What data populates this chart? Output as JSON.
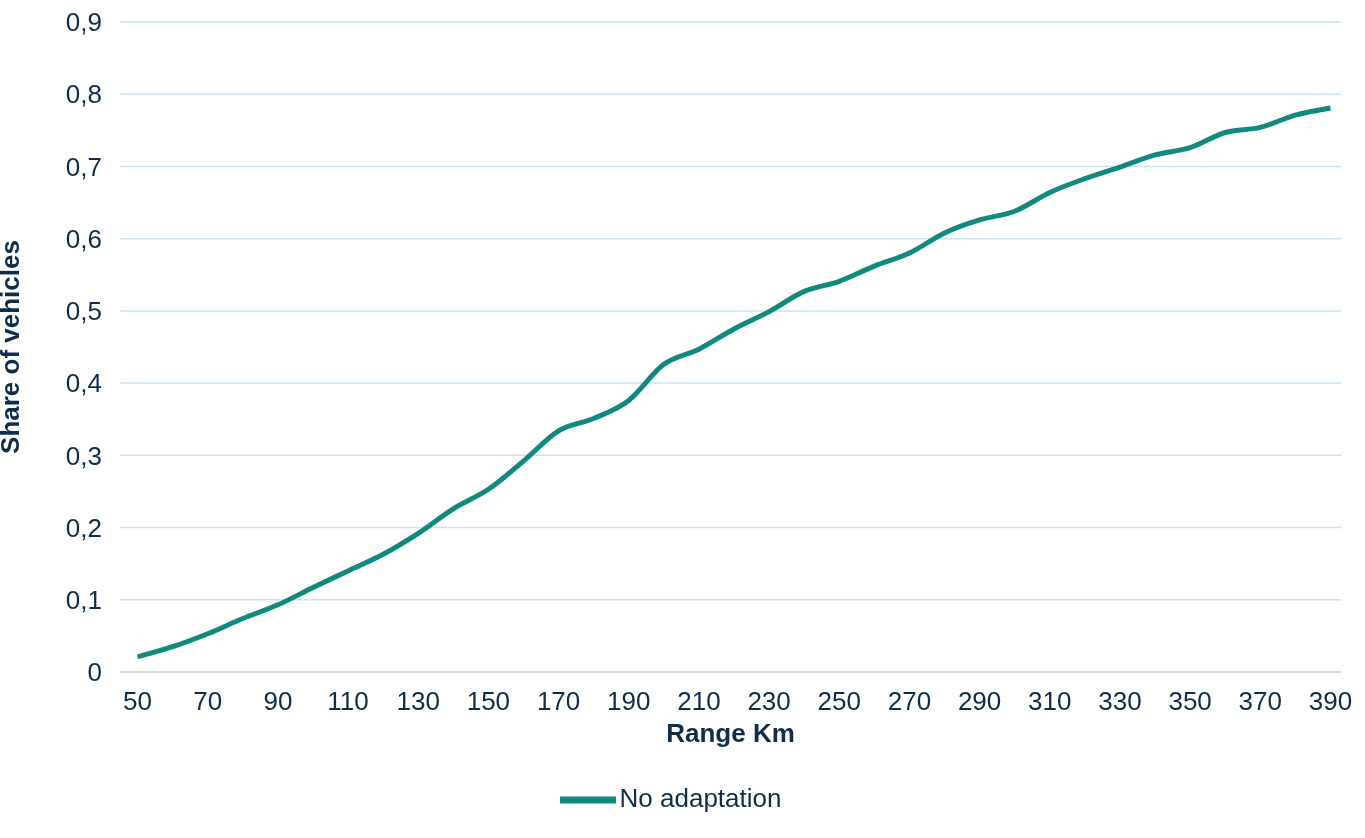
{
  "chart_data": {
    "type": "line",
    "xlabel": "Range Km",
    "ylabel": "Share of vehicles",
    "x": [
      50,
      60,
      70,
      80,
      90,
      100,
      110,
      120,
      130,
      140,
      150,
      160,
      170,
      180,
      190,
      200,
      210,
      220,
      230,
      240,
      250,
      260,
      270,
      280,
      290,
      300,
      310,
      320,
      330,
      340,
      350,
      360,
      370,
      380,
      390
    ],
    "series": [
      {
        "name": "No adaptation",
        "color": "#10897e",
        "values": [
          0.021,
          0.035,
          0.053,
          0.074,
          0.093,
          0.117,
          0.14,
          0.163,
          0.192,
          0.226,
          0.253,
          0.292,
          0.334,
          0.351,
          0.376,
          0.426,
          0.447,
          0.475,
          0.499,
          0.527,
          0.541,
          0.562,
          0.58,
          0.608,
          0.626,
          0.638,
          0.664,
          0.683,
          0.699,
          0.716,
          0.726,
          0.747,
          0.754,
          0.771,
          0.781
        ]
      }
    ],
    "xlim": [
      45,
      393
    ],
    "xticks": [
      50,
      70,
      90,
      110,
      130,
      150,
      170,
      190,
      210,
      230,
      250,
      270,
      290,
      310,
      330,
      350,
      370,
      390
    ],
    "ylim": [
      0,
      0.9
    ],
    "yticks": [
      {
        "value": 0,
        "label": "0"
      },
      {
        "value": 0.1,
        "label": "0,1"
      },
      {
        "value": 0.2,
        "label": "0,2"
      },
      {
        "value": 0.3,
        "label": "0,3"
      },
      {
        "value": 0.4,
        "label": "0,4"
      },
      {
        "value": 0.5,
        "label": "0,5"
      },
      {
        "value": 0.6,
        "label": "0,6"
      },
      {
        "value": 0.7,
        "label": "0,7"
      },
      {
        "value": 0.8,
        "label": "0,8"
      },
      {
        "value": 0.9,
        "label": "0,9"
      }
    ],
    "grid": "y",
    "legend": "bottom",
    "marker": "none",
    "line_style": "solid"
  }
}
